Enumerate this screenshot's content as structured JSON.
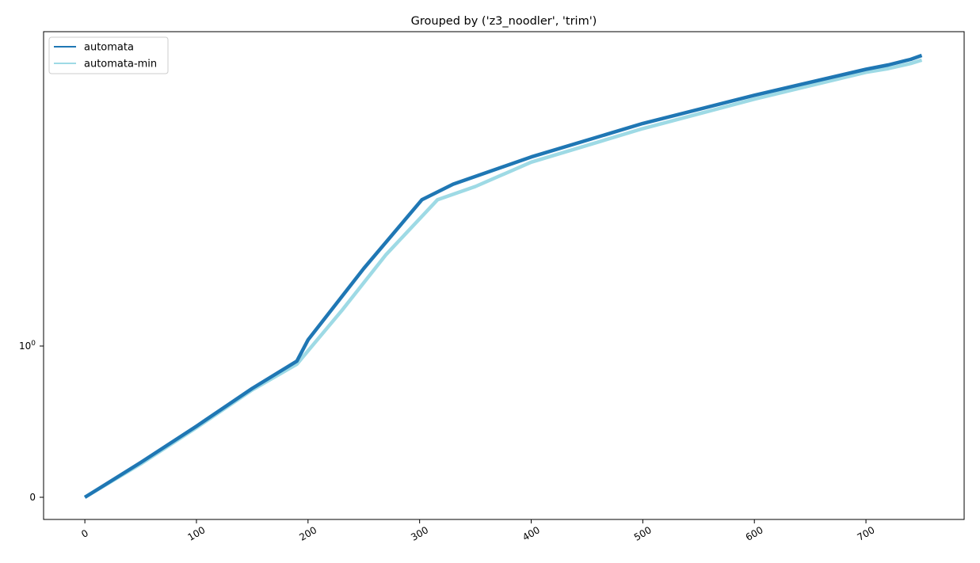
{
  "chart_data": {
    "type": "line",
    "title": "Grouped by ('z3_noodler', 'trim')",
    "xlabel": "",
    "ylabel": "",
    "xlim": [
      -37,
      788
    ],
    "x_ticks": [
      0,
      100,
      200,
      300,
      400,
      500,
      600,
      700
    ],
    "y_scale": "symlog",
    "y_ticks": [
      {
        "value": 0,
        "label_base": "0",
        "label_exp": ""
      },
      {
        "value": 1,
        "label_base": "10",
        "label_exp": "0"
      }
    ],
    "grid": false,
    "legend": {
      "position": "top-left"
    },
    "series": [
      {
        "name": "automata",
        "color": "#1f77b4",
        "points": [
          [
            0,
            0
          ],
          [
            50,
            0.23
          ],
          [
            100,
            0.47
          ],
          [
            150,
            0.72
          ],
          [
            190,
            0.9
          ],
          [
            200,
            1.06
          ],
          [
            250,
            2.1
          ],
          [
            302,
            4.05
          ],
          [
            330,
            4.7
          ],
          [
            400,
            6.1
          ],
          [
            500,
            8.4
          ],
          [
            600,
            11.0
          ],
          [
            700,
            14.1
          ],
          [
            720,
            14.7
          ],
          [
            740,
            15.5
          ],
          [
            750,
            16.1
          ]
        ]
      },
      {
        "name": "automata-min",
        "color": "#9edae5",
        "points": [
          [
            0,
            0
          ],
          [
            50,
            0.22
          ],
          [
            100,
            0.46
          ],
          [
            150,
            0.71
          ],
          [
            190,
            0.88
          ],
          [
            230,
            1.4
          ],
          [
            270,
            2.4
          ],
          [
            316,
            4.05
          ],
          [
            350,
            4.6
          ],
          [
            400,
            5.8
          ],
          [
            500,
            8.0
          ],
          [
            600,
            10.6
          ],
          [
            700,
            13.7
          ],
          [
            720,
            14.2
          ],
          [
            740,
            14.9
          ],
          [
            750,
            15.4
          ]
        ]
      }
    ]
  }
}
